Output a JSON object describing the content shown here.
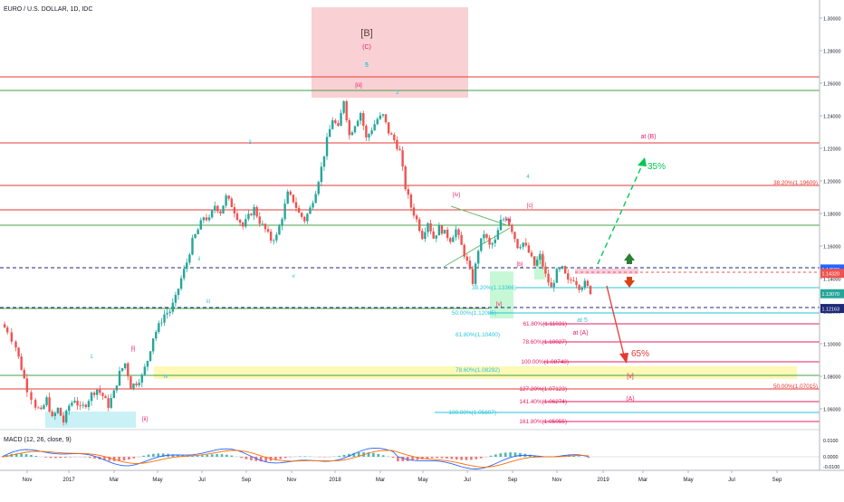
{
  "header": {
    "title": "EURO / U.S. DOLLAR, 1D, IDC"
  },
  "chart_data": {
    "type": "line",
    "title": "EURO / U.S. DOLLAR, 1D, IDC",
    "x_ticks": [
      "Nov",
      "2017",
      "Mar",
      "May",
      "Jul",
      "Sep",
      "Nov",
      "2018",
      "Mar",
      "May",
      "Jul",
      "Sep",
      "Nov",
      "2019",
      "Mar",
      "May",
      "Jul",
      "Sep"
    ],
    "y_ticks": [
      "1.30000",
      "1.28000",
      "1.26000",
      "1.24000",
      "1.22000",
      "1.20000",
      "1.18000",
      "1.16000",
      "1.14000",
      "1.12000",
      "1.10000",
      "1.08000",
      "1.06000"
    ],
    "ylim": [
      1.043,
      1.308
    ],
    "series": [
      {
        "values": [
          [
            0,
            1.112
          ],
          [
            4,
            1.108
          ],
          [
            10,
            1.098
          ],
          [
            14,
            1.085
          ],
          [
            18,
            1.072
          ],
          [
            24,
            1.062
          ],
          [
            28,
            1.058
          ],
          [
            32,
            1.066
          ],
          [
            36,
            1.054
          ],
          [
            40,
            1.06
          ],
          [
            44,
            1.052
          ],
          [
            48,
            1.062
          ],
          [
            52,
            1.066
          ],
          [
            56,
            1.06
          ],
          [
            60,
            1.063
          ],
          [
            64,
            1.069
          ],
          [
            68,
            1.072
          ],
          [
            72,
            1.068
          ],
          [
            76,
            1.062
          ],
          [
            80,
            1.07
          ],
          [
            84,
            1.082
          ],
          [
            88,
            1.088
          ],
          [
            92,
            1.074
          ],
          [
            96,
            1.076
          ],
          [
            100,
            1.08
          ],
          [
            104,
            1.09
          ],
          [
            108,
            1.104
          ],
          [
            112,
            1.111
          ],
          [
            116,
            1.118
          ],
          [
            120,
            1.12
          ],
          [
            124,
            1.128
          ],
          [
            128,
            1.14
          ],
          [
            132,
            1.15
          ],
          [
            136,
            1.163
          ],
          [
            140,
            1.17
          ],
          [
            144,
            1.178
          ],
          [
            148,
            1.176
          ],
          [
            152,
            1.185
          ],
          [
            156,
            1.181
          ],
          [
            160,
            1.19
          ],
          [
            164,
            1.185
          ],
          [
            168,
            1.178
          ],
          [
            172,
            1.172
          ],
          [
            176,
            1.178
          ],
          [
            180,
            1.183
          ],
          [
            184,
            1.175
          ],
          [
            188,
            1.17
          ],
          [
            192,
            1.164
          ],
          [
            196,
            1.166
          ],
          [
            200,
            1.178
          ],
          [
            204,
            1.192
          ],
          [
            208,
            1.188
          ],
          [
            212,
            1.18
          ],
          [
            216,
            1.176
          ],
          [
            220,
            1.183
          ],
          [
            224,
            1.194
          ],
          [
            228,
            1.208
          ],
          [
            232,
            1.225
          ],
          [
            236,
            1.238
          ],
          [
            240,
            1.232
          ],
          [
            244,
            1.25
          ],
          [
            248,
            1.228
          ],
          [
            252,
            1.235
          ],
          [
            256,
            1.242
          ],
          [
            260,
            1.226
          ],
          [
            264,
            1.232
          ],
          [
            268,
            1.238
          ],
          [
            272,
            1.24
          ],
          [
            276,
            1.23
          ],
          [
            280,
            1.225
          ],
          [
            284,
            1.218
          ],
          [
            288,
            1.196
          ],
          [
            292,
            1.184
          ],
          [
            296,
            1.176
          ],
          [
            300,
            1.166
          ],
          [
            304,
            1.175
          ],
          [
            308,
            1.165
          ],
          [
            312,
            1.171
          ],
          [
            316,
            1.168
          ],
          [
            320,
            1.164
          ],
          [
            324,
            1.17
          ],
          [
            328,
            1.16
          ],
          [
            332,
            1.15
          ],
          [
            336,
            1.138
          ],
          [
            340,
            1.158
          ],
          [
            344,
            1.168
          ],
          [
            348,
            1.16
          ],
          [
            352,
            1.163
          ],
          [
            356,
            1.175
          ],
          [
            360,
            1.178
          ],
          [
            364,
            1.17
          ],
          [
            368,
            1.16
          ],
          [
            372,
            1.162
          ],
          [
            376,
            1.156
          ],
          [
            380,
            1.148
          ],
          [
            384,
            1.154
          ],
          [
            388,
            1.142
          ],
          [
            392,
            1.134
          ],
          [
            396,
            1.144
          ],
          [
            400,
            1.146
          ],
          [
            404,
            1.138
          ],
          [
            408,
            1.14
          ],
          [
            412,
            1.135
          ],
          [
            416,
            1.137
          ],
          [
            420,
            1.132
          ]
        ]
      }
    ]
  },
  "price_scale": {
    "labels": [
      {
        "text": "1.14590",
        "price": 1.1459,
        "color": "#2962ff"
      },
      {
        "text": "1.14320",
        "price": 1.1432,
        "color": "#ef5350"
      },
      {
        "text": "1.13070",
        "price": 1.1307,
        "color": "#26a69a"
      },
      {
        "text": "1.12163",
        "price": 1.12163,
        "color": "#1e2a78"
      }
    ]
  },
  "fib_labels": [
    {
      "text": "38.20%(1.19609)",
      "color": "#e53935"
    },
    {
      "text": "38.20%(1.13366)",
      "color": "#26c6da"
    },
    {
      "text": "50.00%(1.12085)",
      "color": "#26c6da"
    },
    {
      "text": "61.80%(1.11031)",
      "color": "#e91e63"
    },
    {
      "text": "61.80%(1.10400)",
      "color": "#26c6da"
    },
    {
      "text": "78.60%(1.10027)",
      "color": "#e91e63"
    },
    {
      "text": "100.00%(1.08748)",
      "color": "#e91e63"
    },
    {
      "text": "78.60%(1.08292)",
      "color": "#26c6da"
    },
    {
      "text": "127.20%(1.07123)",
      "color": "#e91e63"
    },
    {
      "text": "50.00%(1.07015)",
      "color": "#e53935"
    },
    {
      "text": "141.40%(1.06274)",
      "color": "#e91e63"
    },
    {
      "text": "100.00%(1.05607)",
      "color": "#26c6da"
    },
    {
      "text": "161.80%(1.05055)",
      "color": "#e91e63"
    }
  ],
  "annotations": {
    "B_bracket": "[B]",
    "C_paren": "(C)",
    "five": "5",
    "at_B": "at (B)",
    "at_A": "at (A)",
    "at5": "at 5",
    "pct_up": "35%",
    "pct_down": "65%",
    "A_paren": "(A)",
    "v_bracket": "[v]",
    "wave_labels": [
      "1",
      "2",
      "3",
      "4",
      "5",
      "[i]",
      "[ii]",
      "[iii]",
      "[iv]",
      "[v]",
      "[a]",
      "[b]",
      "[c]",
      "i",
      "ii",
      "iii",
      "iv",
      "v"
    ]
  },
  "macd": {
    "label": "MACD (12, 26, close, 9)",
    "ticks": [
      "0.0100",
      "0.0000",
      "-0.0100"
    ]
  },
  "colors": {
    "up": "#26a69a",
    "down": "#ef5350",
    "red_line": "#e53935",
    "green_line": "#43a047",
    "cyan": "#26c6da",
    "magenta": "#e91e63",
    "zone_red": "#f8c9cc",
    "zone_yellow": "#fff59d"
  }
}
